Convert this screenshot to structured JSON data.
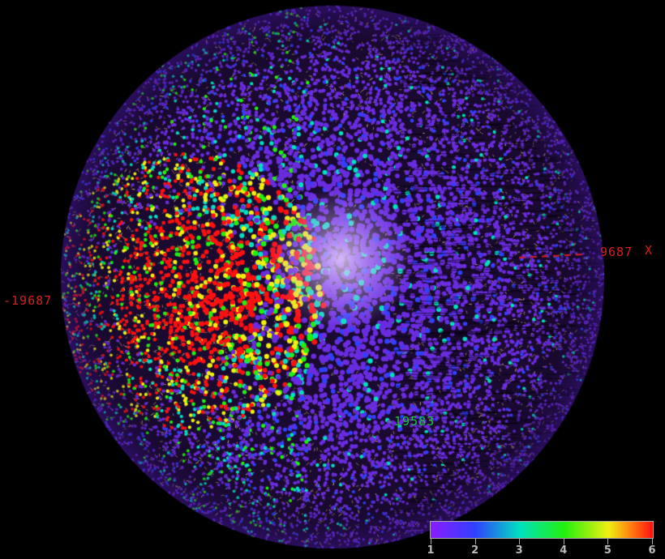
{
  "axis_labels": {
    "x_min": "-19687",
    "x_max": "9687",
    "x_axis_name": "X",
    "y_value": "-19583"
  },
  "colorbar": {
    "ticks": [
      "1",
      "2",
      "3",
      "4",
      "5",
      "6"
    ],
    "colors": [
      "#8a1cff",
      "#3040ff",
      "#00e0c0",
      "#20f010",
      "#f0f010",
      "#ff1010"
    ]
  },
  "colors": {
    "background": "#000000",
    "connector": "#d8b88a",
    "dominant_point": "#6a2ce0",
    "label_red": "#d42020",
    "label_green": "#22c040"
  }
}
